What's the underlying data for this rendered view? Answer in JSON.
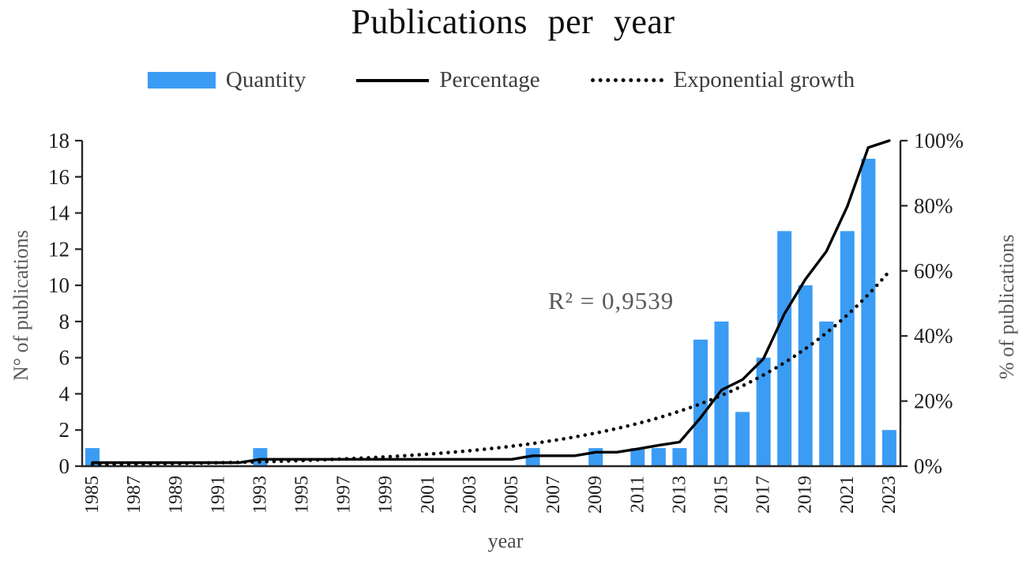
{
  "title": "Publications per year",
  "legend": {
    "items": [
      {
        "label": "Quantity",
        "swatch": "bar"
      },
      {
        "label": "Percentage",
        "swatch": "solid-line"
      },
      {
        "label": "Exponential growth",
        "swatch": "dotted-line"
      }
    ]
  },
  "annotation": {
    "r_squared": "R² = 0,9539"
  },
  "axes": {
    "x_title": "year",
    "left_title": "N° of publications",
    "right_title": "% of publications"
  },
  "colors": {
    "bar": "#3B9CF4",
    "line": "#000000",
    "axis": "#262626",
    "tick_text": "#1f1f1f",
    "muted_text": "#595959"
  },
  "chart_data": {
    "type": "combo",
    "title": "Publications per year",
    "xlabel": "year",
    "ylabel_left": "N° of publications",
    "ylabel_right": "% of publications",
    "grid": false,
    "legend_position": "top",
    "x": [
      1985,
      1986,
      1987,
      1988,
      1989,
      1990,
      1991,
      1992,
      1993,
      1994,
      1995,
      1996,
      1997,
      1998,
      1999,
      2000,
      2001,
      2002,
      2003,
      2004,
      2005,
      2006,
      2007,
      2008,
      2009,
      2010,
      2011,
      2012,
      2013,
      2014,
      2015,
      2016,
      2017,
      2018,
      2019,
      2020,
      2021,
      2022,
      2023
    ],
    "x_tick_labels": [
      "1985",
      "1987",
      "1989",
      "1991",
      "1993",
      "1995",
      "1997",
      "1999",
      "2001",
      "2003",
      "2005",
      "2007",
      "2009",
      "2011",
      "2013",
      "2015",
      "2017",
      "2019",
      "2021",
      "2023"
    ],
    "ylim_left": [
      0,
      18
    ],
    "yticks_left": [
      0,
      2,
      4,
      6,
      8,
      10,
      12,
      14,
      16,
      18
    ],
    "ylim_right_percent": [
      0,
      100
    ],
    "yticks_right_labels": [
      "0%",
      "20%",
      "40%",
      "60%",
      "80%",
      "100%"
    ],
    "series": [
      {
        "name": "Quantity",
        "type": "bar",
        "axis": "left",
        "color": "#3B9CF4",
        "values": [
          1,
          0,
          0,
          0,
          0,
          0,
          0,
          0,
          1,
          0,
          0,
          0,
          0,
          0,
          0,
          0,
          0,
          0,
          0,
          0,
          0,
          1,
          0,
          0,
          1,
          0,
          1,
          1,
          1,
          7,
          8,
          3,
          6,
          13,
          10,
          8,
          13,
          17,
          2
        ]
      },
      {
        "name": "Percentage",
        "type": "line",
        "axis": "right",
        "color": "#000000",
        "values_percent": [
          1.1,
          1.1,
          1.1,
          1.1,
          1.1,
          1.1,
          1.1,
          1.1,
          2.1,
          2.1,
          2.1,
          2.1,
          2.1,
          2.1,
          2.1,
          2.1,
          2.1,
          2.1,
          2.1,
          2.1,
          2.1,
          3.2,
          3.2,
          3.2,
          4.3,
          4.3,
          5.3,
          6.4,
          7.4,
          14.9,
          23.4,
          26.6,
          33.0,
          46.8,
          57.4,
          66.0,
          79.8,
          97.9,
          100.0
        ]
      },
      {
        "name": "Exponential growth",
        "type": "dotted-line",
        "axis": "left",
        "color": "#0d0d0d",
        "trendline": "exponential",
        "r_squared_label": "R² = 0,9539",
        "formula": {
          "a": 0.088,
          "b": 0.1265,
          "t0_year": 1985
        }
      }
    ]
  }
}
